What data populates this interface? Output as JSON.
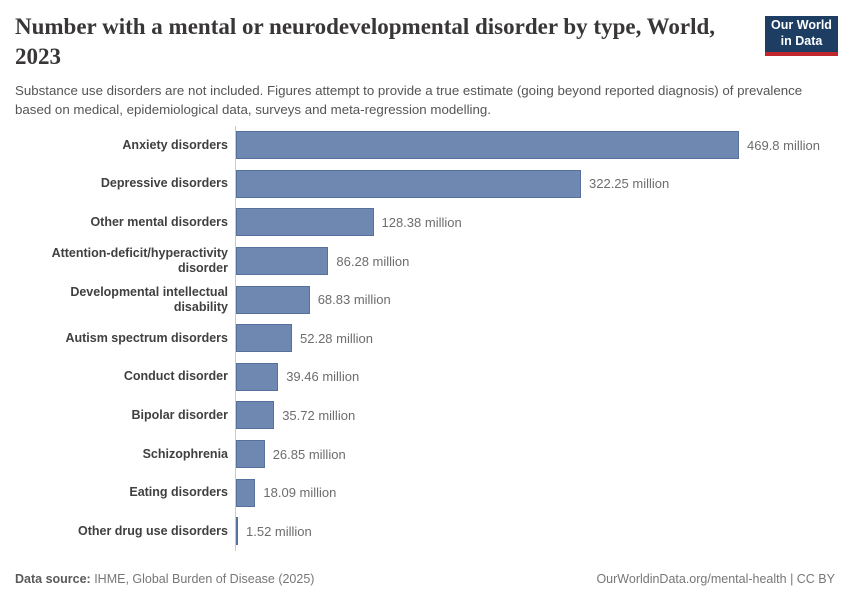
{
  "header": {
    "title": "Number with a mental or neurodevelopmental disorder by type, World, 2023",
    "subtitle": "Substance use disorders are not included. Figures attempt to provide a true estimate (going beyond reported diagnosis) of prevalence based on medical, epidemiological data, surveys and meta-regression modelling.",
    "logo": {
      "line1": "Our World",
      "line2": "in Data"
    }
  },
  "chart_data": {
    "type": "bar",
    "orientation": "horizontal",
    "title": "Number with a mental or neurodevelopmental disorder by type, World, 2023",
    "categories": [
      "Anxiety disorders",
      "Depressive disorders",
      "Other mental disorders",
      "Attention-deficit/hyperactivity disorder",
      "Developmental intellectual disability",
      "Autism spectrum disorders",
      "Conduct disorder",
      "Bipolar disorder",
      "Schizophrenia",
      "Eating disorders",
      "Other drug use disorders"
    ],
    "values": [
      469.8,
      322.25,
      128.38,
      86.28,
      68.83,
      52.28,
      39.46,
      35.72,
      26.85,
      18.09,
      1.52
    ],
    "value_labels": [
      "469.8 million",
      "322.25 million",
      "128.38 million",
      "86.28 million",
      "68.83 million",
      "52.28 million",
      "39.46 million",
      "35.72 million",
      "26.85 million",
      "18.09 million",
      "1.52 million"
    ],
    "unit": "million",
    "xlabel": "",
    "ylabel": "",
    "xlim": [
      0,
      469.8
    ],
    "grid": false,
    "legend": "none",
    "bar_color": "#6f88b2",
    "bar_border_color": "#57719f",
    "axis_color": "#cbcbcb"
  },
  "footer": {
    "data_source_label": "Data source:",
    "data_source_text": " IHME, Global Burden of Disease (2025)",
    "right_text": "OurWorldinData.org/mental-health | CC BY"
  },
  "colors": {
    "logo_bg": "#1d3d63",
    "logo_accent": "#c0282e",
    "title_text": "#383636",
    "subtitle_text": "#555555",
    "category_text": "#404040",
    "value_text": "#6d6d6d"
  }
}
